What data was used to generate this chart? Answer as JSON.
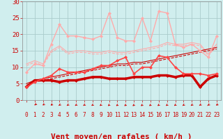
{
  "title": "",
  "xlabel": "Vent moyen/en rafales ( km/h )",
  "bg_color": "#d0eeee",
  "grid_color": "#aacccc",
  "xlim": [
    -0.5,
    23.5
  ],
  "ylim": [
    0,
    30
  ],
  "yticks": [
    0,
    5,
    10,
    15,
    20,
    25,
    30
  ],
  "xticks": [
    0,
    1,
    2,
    3,
    4,
    5,
    6,
    7,
    8,
    9,
    10,
    11,
    12,
    13,
    14,
    15,
    16,
    17,
    18,
    19,
    20,
    21,
    22,
    23
  ],
  "series": [
    {
      "y": [
        4.0,
        6.0,
        6.0,
        6.0,
        5.5,
        6.0,
        6.0,
        6.5,
        7.0,
        7.0,
        6.5,
        6.5,
        6.5,
        7.0,
        7.0,
        7.0,
        7.5,
        7.5,
        7.0,
        7.5,
        7.5,
        4.0,
        6.5,
        7.5
      ],
      "color": "#cc0000",
      "lw": 2.5,
      "marker": "D",
      "ms": 2,
      "zorder": 5,
      "linestyle": "-"
    },
    {
      "y": [
        4.5,
        5.5,
        6.0,
        6.5,
        7.0,
        7.5,
        8.0,
        8.5,
        9.0,
        9.5,
        10.0,
        10.5,
        10.5,
        11.0,
        11.0,
        11.5,
        12.0,
        12.5,
        13.0,
        13.5,
        14.0,
        14.5,
        15.0,
        15.5
      ],
      "color": "#cc0000",
      "lw": 0.8,
      "marker": null,
      "ms": 0,
      "zorder": 3,
      "linestyle": "--"
    },
    {
      "y": [
        5.0,
        6.0,
        6.5,
        7.0,
        7.5,
        8.0,
        8.5,
        9.0,
        9.5,
        10.0,
        10.5,
        11.0,
        11.0,
        11.5,
        11.5,
        12.0,
        12.5,
        13.0,
        13.5,
        14.0,
        14.5,
        15.0,
        15.5,
        16.0
      ],
      "color": "#cc0000",
      "lw": 0.8,
      "marker": null,
      "ms": 0,
      "zorder": 3,
      "linestyle": "-"
    },
    {
      "y": [
        8.5,
        11.0,
        10.5,
        17.0,
        23.0,
        19.5,
        19.5,
        19.0,
        18.5,
        19.5,
        26.5,
        19.0,
        18.0,
        18.0,
        25.0,
        18.0,
        27.0,
        26.5,
        17.0,
        16.0,
        17.0,
        15.0,
        13.0,
        19.5
      ],
      "color": "#ffaaaa",
      "lw": 1.0,
      "marker": "D",
      "ms": 2,
      "zorder": 4,
      "linestyle": "-"
    },
    {
      "y": [
        10.5,
        11.5,
        10.5,
        14.5,
        16.0,
        14.0,
        14.5,
        14.5,
        14.0,
        14.0,
        14.5,
        14.0,
        14.0,
        14.5,
        15.0,
        15.5,
        16.0,
        17.0,
        16.5,
        16.5,
        17.0,
        16.5,
        13.5,
        16.5
      ],
      "color": "#ffaaaa",
      "lw": 0.8,
      "marker": null,
      "ms": 0,
      "zorder": 2,
      "linestyle": "--"
    },
    {
      "y": [
        11.0,
        12.0,
        11.0,
        15.0,
        16.5,
        14.5,
        15.0,
        15.0,
        14.5,
        14.5,
        15.0,
        14.5,
        14.5,
        15.0,
        15.5,
        16.0,
        16.5,
        17.5,
        17.0,
        17.0,
        17.5,
        17.0,
        14.0,
        17.0
      ],
      "color": "#ffaaaa",
      "lw": 0.8,
      "marker": null,
      "ms": 0,
      "zorder": 2,
      "linestyle": "-"
    },
    {
      "y": [
        4.0,
        5.5,
        6.5,
        7.5,
        9.5,
        8.5,
        8.5,
        8.5,
        9.5,
        10.5,
        10.5,
        12.0,
        13.0,
        8.0,
        10.0,
        10.0,
        13.5,
        13.0,
        10.0,
        8.0,
        8.0,
        8.0,
        7.5,
        8.0
      ],
      "color": "#ff4444",
      "lw": 1.2,
      "marker": "D",
      "ms": 2,
      "zorder": 6,
      "linestyle": "-"
    }
  ],
  "xlabel_color": "#cc0000",
  "xlabel_fontsize": 8,
  "tick_color": "#cc0000",
  "tick_fontsize": 5.5,
  "ytick_fontsize": 6.5,
  "arrow_angles": [
    270,
    260,
    250,
    240,
    230,
    225,
    220,
    220,
    215,
    210,
    200,
    195,
    185,
    180,
    175,
    165,
    155,
    150,
    145,
    140,
    135,
    130,
    125,
    120
  ]
}
